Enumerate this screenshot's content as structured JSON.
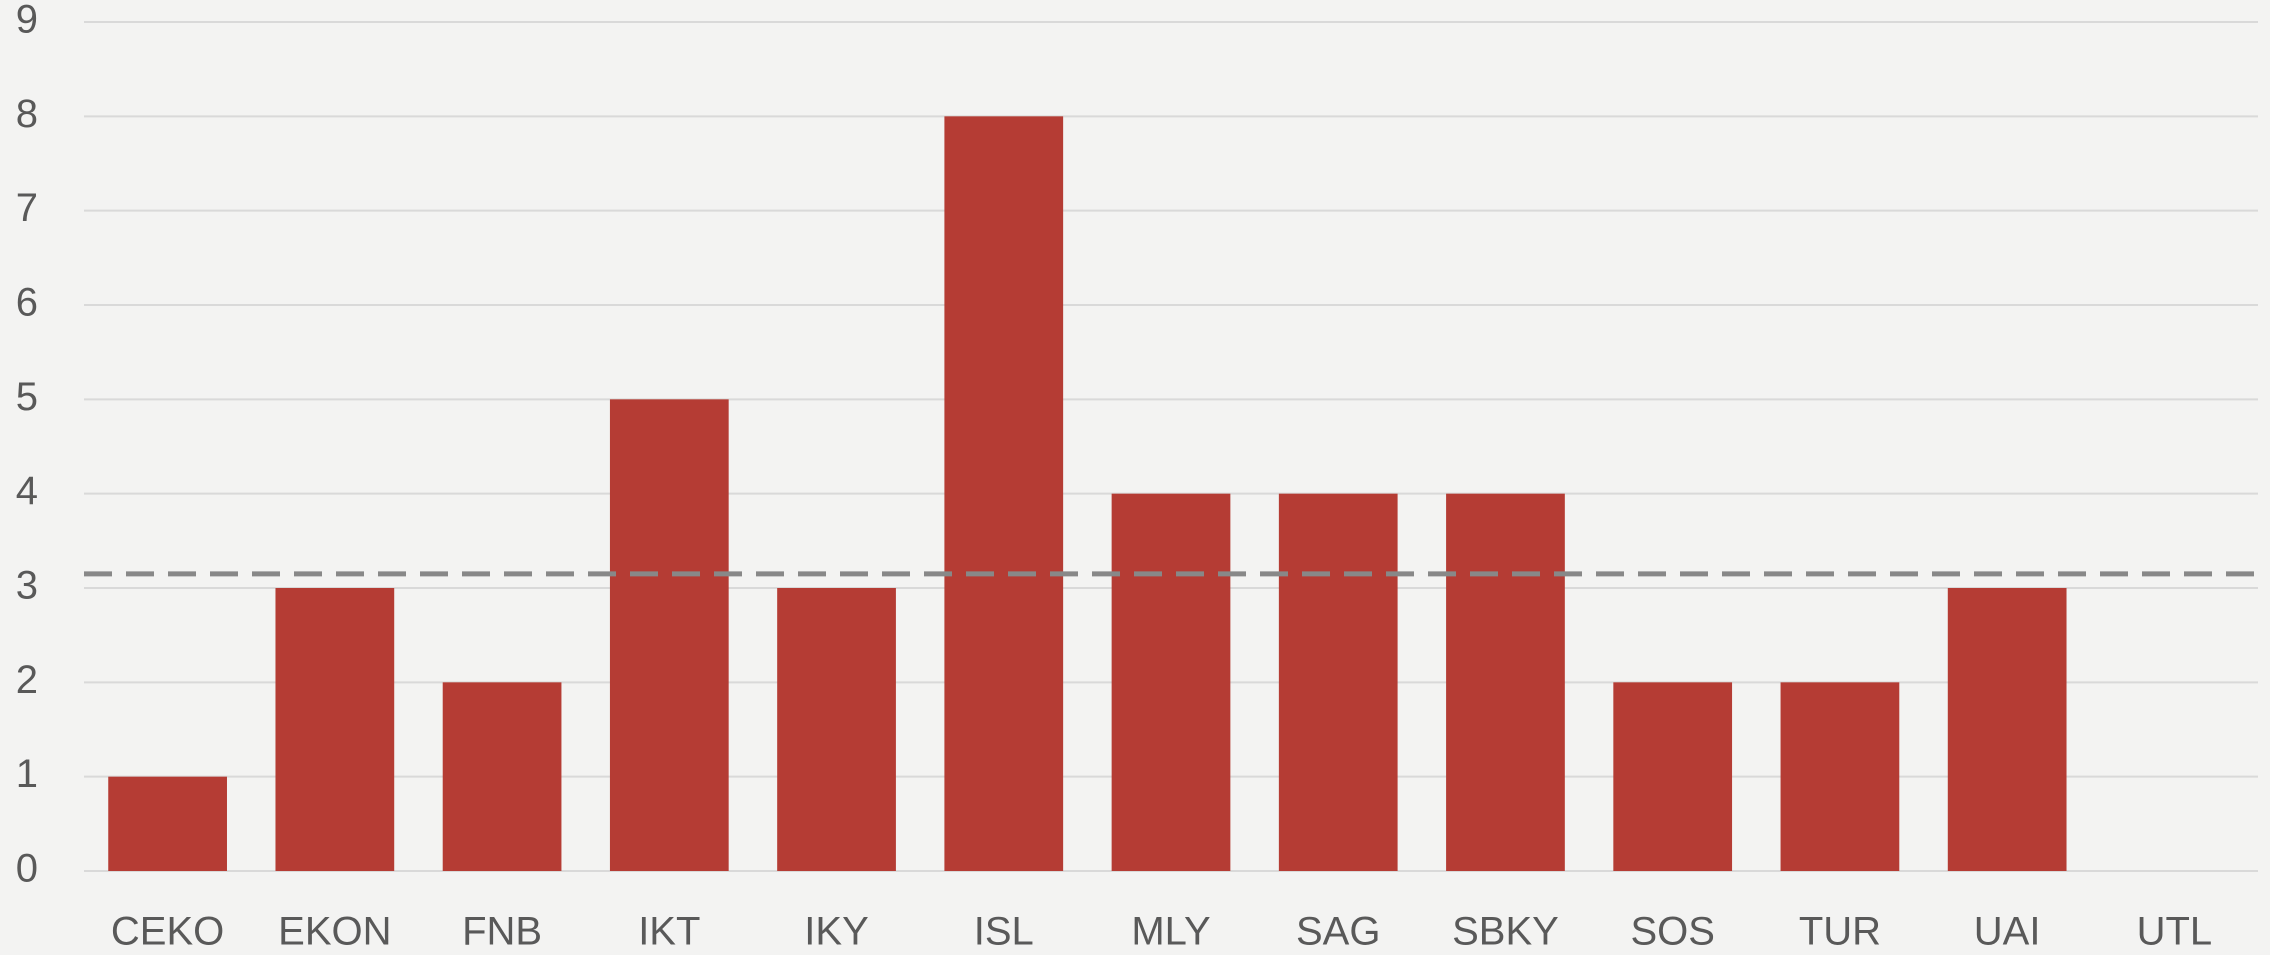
{
  "chart_data": {
    "type": "bar",
    "categories": [
      "CEKO",
      "EKON",
      "FNB",
      "IKT",
      "IKY",
      "ISL",
      "MLY",
      "SAG",
      "SBKY",
      "SOS",
      "TUR",
      "UAI",
      "UTL"
    ],
    "values": [
      1,
      3,
      2,
      5,
      3,
      8,
      4,
      4,
      4,
      2,
      2,
      3,
      0
    ],
    "color": "#b53c34",
    "ylim": [
      0,
      9
    ],
    "yticks": [
      0,
      1,
      2,
      3,
      4,
      5,
      6,
      7,
      8,
      9
    ],
    "grid": true,
    "reference_line": {
      "value": 3.15,
      "color": "#888888",
      "dashed": true
    }
  }
}
